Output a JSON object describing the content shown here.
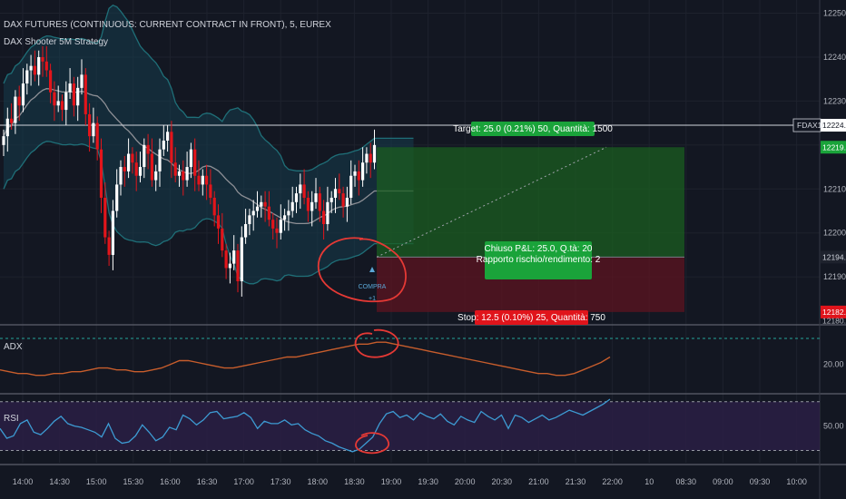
{
  "header": {
    "title": "DAX FUTURES (CONTINUOUS: CURRENT CONTRACT IN FRONT), 5, EUREX",
    "strategy": "DAX Shooter 5M Strategy"
  },
  "panels": {
    "adx_label": "ADX",
    "rsi_label": "RSI"
  },
  "colors": {
    "background": "#131722",
    "bull": "#ffffff",
    "bear": "#e3151b",
    "band": "#1f6f78",
    "band_fill": "#163d4d",
    "basis": "#8e9096",
    "target_zone": "#1b5e20",
    "stop_zone": "#5e1420",
    "adx": "#c75d2c",
    "rsi": "#3d9bd3",
    "rsi_band": "#2a1e44",
    "marker": "#e53935"
  },
  "trade": {
    "target_label": "Target: 25.0 (0.21%) 50, Quantità: 1500",
    "stop_label": "Stop: 12.5 (0.10%) 25, Quantità: 750",
    "closed_label_1": "Chiuso P&L: 25.0, Q.tà: 20",
    "closed_label_2": "Rapporto rischio/rendimento: 2",
    "entry_label": "COMPRA",
    "entry_qty": "+1",
    "entry": 12194.5,
    "target": 12219.5,
    "stop": 12182.0
  },
  "chart_data": [
    {
      "type": "candlestick",
      "x": [
        "14:00",
        "14:30",
        "15:00",
        "15:30",
        "16:00",
        "16:30",
        "17:00",
        "17:30",
        "18:00",
        "18:30",
        "19:00",
        "19:30",
        "20:00",
        "20:30",
        "21:00",
        "21:30",
        "22:00",
        "10",
        "08:30",
        "09:00",
        "09:30",
        "10:00"
      ],
      "y_ticks": [
        12190.0,
        12200.0,
        12210.0,
        12220.0,
        12230.0,
        12240.0,
        12250.0
      ],
      "ylim": [
        12179.5,
        12253
      ],
      "price_labels": [
        {
          "value": 12224.5,
          "text": "12224.5",
          "tag": "FDAX1!"
        },
        {
          "value": 12219.5,
          "text": "12219.5"
        },
        {
          "value": 12194.5,
          "text": "12194.5"
        },
        {
          "value": 12182.0,
          "text": "12182.0"
        },
        {
          "value": 12180.0,
          "text": "12180.0"
        }
      ],
      "closes": [
        12222,
        12226,
        12225,
        12231,
        12229,
        12234,
        12237,
        12238,
        12236,
        12240,
        12239,
        12237,
        12232,
        12229,
        12230,
        12228,
        12232,
        12234,
        12229,
        12233,
        12236,
        12227,
        12222,
        12225,
        12219,
        12208,
        12199,
        12195,
        12205,
        12211,
        12215,
        12214,
        12218,
        12216,
        12213,
        12215,
        12220,
        12218,
        12212,
        12214,
        12219,
        12221,
        12223,
        12216,
        12213,
        12214,
        12212,
        12215,
        12219,
        12213,
        12211,
        12213,
        12211,
        12208,
        12204,
        12201,
        12196,
        12192,
        12193,
        12196,
        12189,
        12199,
        12202,
        12204,
        12205,
        12206,
        12207,
        12206,
        12203,
        12201,
        12200,
        12203,
        12204,
        12205,
        12207,
        12209,
        12211,
        12208,
        12205,
        12207,
        12209,
        12205,
        12202,
        12207,
        12208,
        12210,
        12209,
        12206,
        12208,
        12213,
        12214,
        12212,
        12216,
        12218,
        12216,
        12220
      ]
    },
    {
      "type": "line",
      "name": "ADX",
      "y_ticks": [
        20.0
      ],
      "ylim": [
        5,
        40
      ],
      "values": [
        17,
        16,
        15,
        15,
        14,
        14,
        15,
        15,
        16,
        16,
        17,
        18,
        18,
        17,
        17,
        16,
        16,
        17,
        18,
        20,
        22,
        22,
        21,
        20,
        19,
        18,
        18,
        19,
        20,
        21,
        22,
        23,
        24,
        24,
        25,
        26,
        27,
        28,
        29,
        30,
        31,
        31,
        32,
        32,
        31,
        30,
        29,
        28,
        27,
        26,
        25,
        24,
        23,
        22,
        21,
        20,
        19,
        18,
        17,
        16,
        15,
        15,
        14,
        14,
        15,
        17,
        19,
        21,
        24
      ]
    },
    {
      "type": "line",
      "name": "RSI",
      "y_ticks": [
        50.0
      ],
      "ylim": [
        20,
        75
      ],
      "levels": [
        70,
        30
      ],
      "values": [
        48,
        40,
        42,
        52,
        55,
        45,
        43,
        48,
        54,
        58,
        52,
        50,
        49,
        47,
        45,
        41,
        52,
        40,
        36,
        37,
        42,
        51,
        45,
        38,
        41,
        49,
        47,
        59,
        56,
        51,
        55,
        61,
        62,
        56,
        57,
        58,
        61,
        57,
        48,
        54,
        52,
        52,
        55,
        51,
        52,
        47,
        44,
        42,
        38,
        36,
        33,
        31,
        29,
        31,
        36,
        41,
        52,
        60,
        62,
        57,
        59,
        55,
        61,
        58,
        56,
        60,
        54,
        51,
        58,
        55,
        53,
        62,
        58,
        55,
        59,
        48,
        59,
        57,
        53,
        56,
        59,
        55,
        57,
        60,
        63,
        61,
        59,
        62,
        65,
        68,
        72
      ]
    }
  ],
  "x_axis_labels": [
    "14:00",
    "14:30",
    "15:00",
    "15:30",
    "16:00",
    "16:30",
    "17:00",
    "17:30",
    "18:00",
    "18:30",
    "19:00",
    "19:30",
    "20:00",
    "20:30",
    "21:00",
    "21:30",
    "22:00",
    "10",
    "08:30",
    "09:00",
    "09:30",
    "10:00"
  ]
}
